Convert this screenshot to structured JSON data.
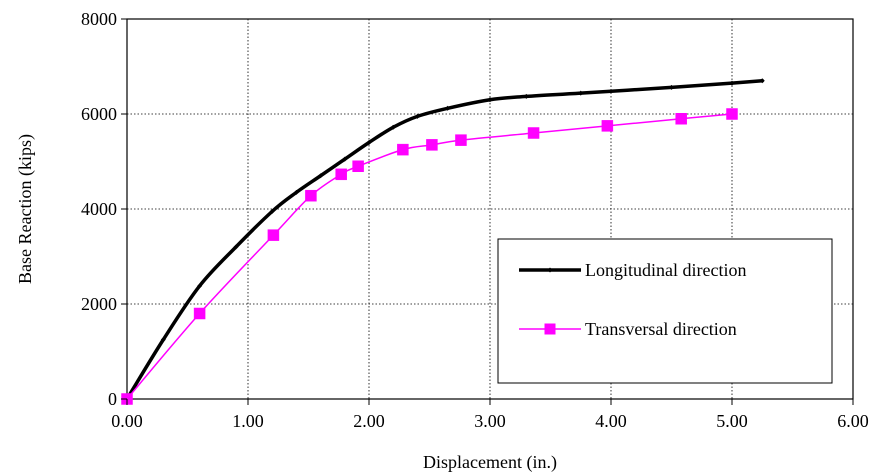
{
  "chart_data": {
    "type": "line",
    "title": "",
    "xlabel": "Displacement (in.)",
    "ylabel": "Base Reaction (kips)",
    "xlim": [
      0,
      6
    ],
    "ylim": [
      0,
      8000
    ],
    "x_ticks": [
      "0.00",
      "1.00",
      "2.00",
      "3.00",
      "4.00",
      "5.00",
      "6.00"
    ],
    "y_ticks": [
      "0",
      "2000",
      "4000",
      "6000",
      "8000"
    ],
    "grid": "dotted",
    "legend_position": "lower-right",
    "series": [
      {
        "name": "Longitudinal direction",
        "color": "#000000",
        "marker": "small-diamond",
        "x": [
          0.0,
          0.3,
          0.6,
          0.9,
          1.2,
          1.4,
          1.6,
          1.8,
          2.0,
          2.2,
          2.4,
          2.65,
          3.0,
          3.3,
          3.75,
          4.5,
          5.0,
          5.25
        ],
        "y": [
          0,
          1250,
          2380,
          3200,
          3950,
          4350,
          4700,
          5050,
          5400,
          5720,
          5950,
          6120,
          6300,
          6370,
          6440,
          6560,
          6650,
          6700
        ]
      },
      {
        "name": "Transversal direction",
        "color": "#ff00ff",
        "marker": "square",
        "x": [
          0.0,
          0.6,
          1.21,
          1.52,
          1.77,
          1.91,
          2.28,
          2.52,
          2.76,
          3.36,
          3.97,
          4.58,
          5.0
        ],
        "y": [
          0,
          1800,
          3450,
          4280,
          4730,
          4900,
          5250,
          5350,
          5450,
          5600,
          5750,
          5900,
          6000
        ]
      }
    ]
  }
}
